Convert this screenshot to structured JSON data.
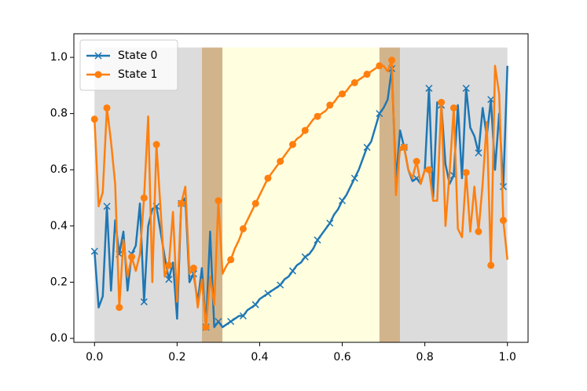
{
  "chart_data": {
    "type": "line",
    "x": [
      0,
      0.01,
      0.02,
      0.03,
      0.04,
      0.05,
      0.06,
      0.07,
      0.08,
      0.09,
      0.1,
      0.11,
      0.12,
      0.13,
      0.14,
      0.15,
      0.16,
      0.17,
      0.18,
      0.19,
      0.2,
      0.21,
      0.22,
      0.23,
      0.24,
      0.25,
      0.26,
      0.27,
      0.28,
      0.29,
      0.3,
      0.31,
      0.32,
      0.33,
      0.34,
      0.35,
      0.36,
      0.37,
      0.38,
      0.39,
      0.4,
      0.41,
      0.42,
      0.43,
      0.44,
      0.45,
      0.46,
      0.47,
      0.48,
      0.49,
      0.5,
      0.51,
      0.52,
      0.53,
      0.54,
      0.55,
      0.56,
      0.57,
      0.58,
      0.59,
      0.6,
      0.61,
      0.62,
      0.63,
      0.64,
      0.65,
      0.66,
      0.67,
      0.68,
      0.69,
      0.7,
      0.71,
      0.72,
      0.73,
      0.74,
      0.75,
      0.76,
      0.77,
      0.78,
      0.79,
      0.8,
      0.81,
      0.82,
      0.83,
      0.84,
      0.85,
      0.86,
      0.87,
      0.88,
      0.89,
      0.9,
      0.91,
      0.92,
      0.93,
      0.94,
      0.95,
      0.96,
      0.97,
      0.98,
      0.99,
      1
    ],
    "series": [
      {
        "name": "State 0",
        "color": "#1f77b4",
        "marker": "x",
        "markevery": 3,
        "values": [
          0.31,
          0.11,
          0.15,
          0.47,
          0.17,
          0.42,
          0.3,
          0.38,
          0.17,
          0.3,
          0.33,
          0.48,
          0.13,
          0.4,
          0.46,
          0.47,
          0.38,
          0.29,
          0.21,
          0.27,
          0.07,
          0.48,
          0.5,
          0.2,
          0.23,
          0.13,
          0.25,
          0.04,
          0.38,
          0.04,
          0.06,
          0.04,
          0.05,
          0.06,
          0.07,
          0.08,
          0.08,
          0.1,
          0.11,
          0.12,
          0.14,
          0.15,
          0.16,
          0.17,
          0.18,
          0.19,
          0.21,
          0.22,
          0.24,
          0.26,
          0.27,
          0.29,
          0.3,
          0.32,
          0.35,
          0.37,
          0.39,
          0.41,
          0.44,
          0.46,
          0.49,
          0.51,
          0.54,
          0.57,
          0.6,
          0.64,
          0.68,
          0.7,
          0.75,
          0.8,
          0.82,
          0.85,
          0.96,
          0.56,
          0.74,
          0.68,
          0.6,
          0.56,
          0.57,
          0.55,
          0.6,
          0.89,
          0.5,
          0.84,
          0.83,
          0.62,
          0.55,
          0.58,
          0.83,
          0.57,
          0.89,
          0.75,
          0.72,
          0.66,
          0.82,
          0.72,
          0.85,
          0.6,
          0.8,
          0.54,
          0.97
        ]
      },
      {
        "name": "State 1",
        "color": "#ff7f0e",
        "marker": "o",
        "markevery": 3,
        "values": [
          0.78,
          0.47,
          0.52,
          0.82,
          0.7,
          0.55,
          0.11,
          0.35,
          0.22,
          0.29,
          0.24,
          0.3,
          0.5,
          0.79,
          0.2,
          0.69,
          0.46,
          0.22,
          0.26,
          0.45,
          0.13,
          0.48,
          0.54,
          0.23,
          0.25,
          0.11,
          0.21,
          0.04,
          0.22,
          0.12,
          0.49,
          0.23,
          0.26,
          0.28,
          0.32,
          0.35,
          0.39,
          0.42,
          0.45,
          0.48,
          0.51,
          0.54,
          0.57,
          0.59,
          0.61,
          0.63,
          0.65,
          0.67,
          0.69,
          0.71,
          0.72,
          0.74,
          0.76,
          0.78,
          0.79,
          0.8,
          0.81,
          0.83,
          0.84,
          0.86,
          0.87,
          0.88,
          0.9,
          0.91,
          0.92,
          0.93,
          0.94,
          0.95,
          0.96,
          0.97,
          0.97,
          0.95,
          0.99,
          0.51,
          0.68,
          0.68,
          0.6,
          0.57,
          0.63,
          0.55,
          0.6,
          0.6,
          0.49,
          0.49,
          0.84,
          0.4,
          0.59,
          0.82,
          0.39,
          0.36,
          0.59,
          0.38,
          0.54,
          0.38,
          0.55,
          0.77,
          0.26,
          0.97,
          0.87,
          0.42,
          0.28
        ]
      }
    ],
    "spans": [
      {
        "start": 0,
        "end": 0.26,
        "color": "#dcdcdc"
      },
      {
        "start": 0.26,
        "end": 0.31,
        "color": "#d2b48c"
      },
      {
        "start": 0.31,
        "end": 0.69,
        "color": "#ffffe0"
      },
      {
        "start": 0.69,
        "end": 0.74,
        "color": "#d2b48c"
      },
      {
        "start": 0.74,
        "end": 1,
        "color": "#dcdcdc"
      }
    ],
    "span_top": 1.035,
    "xlim": [
      -0.05,
      1.05
    ],
    "ylim": [
      -0.014,
      1.084
    ],
    "xticks": [
      {
        "value": 0,
        "label": "0.0"
      },
      {
        "value": 0.2,
        "label": "0.2"
      },
      {
        "value": 0.4,
        "label": "0.4"
      },
      {
        "value": 0.6,
        "label": "0.6"
      },
      {
        "value": 0.8,
        "label": "0.8"
      },
      {
        "value": 1,
        "label": "1.0"
      }
    ],
    "yticks": [
      {
        "value": 0,
        "label": "0.0"
      },
      {
        "value": 0.2,
        "label": "0.2"
      },
      {
        "value": 0.4,
        "label": "0.4"
      },
      {
        "value": 0.6,
        "label": "0.6"
      },
      {
        "value": 0.8,
        "label": "0.8"
      },
      {
        "value": 1,
        "label": "1.0"
      }
    ],
    "legend": "upper left"
  }
}
